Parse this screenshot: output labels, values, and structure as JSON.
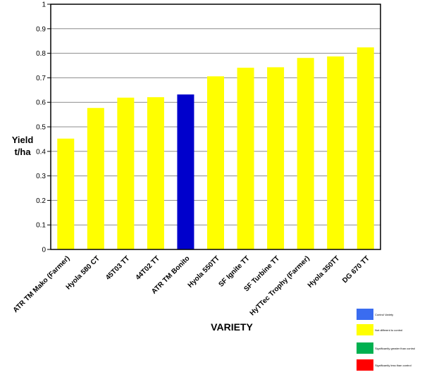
{
  "chart_data": {
    "type": "bar",
    "xlabel": "VARIETY",
    "ylabel": [
      "Yield",
      "t/ha"
    ],
    "ylim": [
      0,
      1
    ],
    "yticks": [
      0,
      0.1,
      0.2,
      0.3,
      0.4,
      0.5,
      0.6,
      0.7,
      0.8,
      0.9,
      1
    ],
    "ytick_labels": [
      "0",
      "0.1",
      "0.2",
      "0.3",
      "0.4",
      "0.5",
      "0.6",
      "0.7",
      "0.8",
      "0.9",
      "1"
    ],
    "grid": true,
    "categories": [
      "ATR TM Mako (Farmer)",
      "Hyola 580 CT",
      "45T03 TT",
      "44T02 TT",
      "ATR TM Bonito",
      "Hyola 550TT",
      "SF Ignite TT",
      "SF Turbine TT",
      "HyTTec Trophy (Farmer)",
      "Hyola 350TT",
      "DG 670 TT"
    ],
    "values": [
      0.452,
      0.577,
      0.619,
      0.621,
      0.632,
      0.706,
      0.741,
      0.743,
      0.781,
      0.787,
      0.824
    ],
    "bar_status": [
      "not-different",
      "not-different",
      "not-different",
      "not-different",
      "control",
      "not-different",
      "not-different",
      "not-different",
      "not-different",
      "not-different",
      "not-different"
    ],
    "legend_position": "bottom-right",
    "legend": [
      {
        "key": "control",
        "label": "Control Variety",
        "color": "#3a6cf0"
      },
      {
        "key": "not-different",
        "label": "Not different to control",
        "color": "#ffff00"
      },
      {
        "key": "greater",
        "label": "Significantly greater than control",
        "color": "#00b050"
      },
      {
        "key": "less",
        "label": "Significantly less than control",
        "color": "#ff0000"
      }
    ],
    "bar_colors": {
      "control": "#0000cc",
      "not-different": "#ffff00"
    }
  }
}
